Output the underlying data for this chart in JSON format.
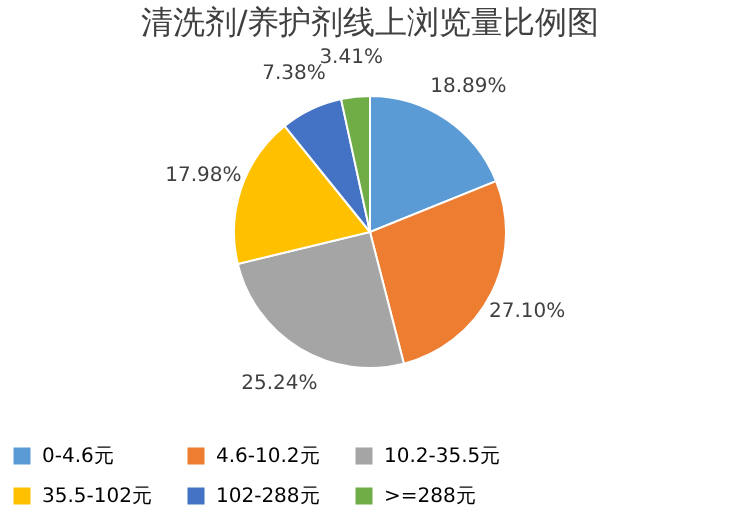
{
  "chart_data": {
    "type": "pie",
    "title": "清洗剂/养护剂线上浏览量比例图",
    "categories": [
      "0-4.6元",
      "4.6-10.2元",
      "10.2-35.5元",
      "35.5-102元",
      "102-288元",
      ">=288元"
    ],
    "values": [
      18.89,
      27.1,
      25.24,
      17.98,
      7.38,
      3.41
    ],
    "colors": [
      "#5b9bd5",
      "#ed7d31",
      "#a5a5a5",
      "#ffc000",
      "#4472c4",
      "#70ad47"
    ],
    "value_labels": [
      "18.89%",
      "27.10%",
      "25.24%",
      "17.98%",
      "7.38%",
      "3.41%"
    ],
    "legend": "bottom"
  }
}
